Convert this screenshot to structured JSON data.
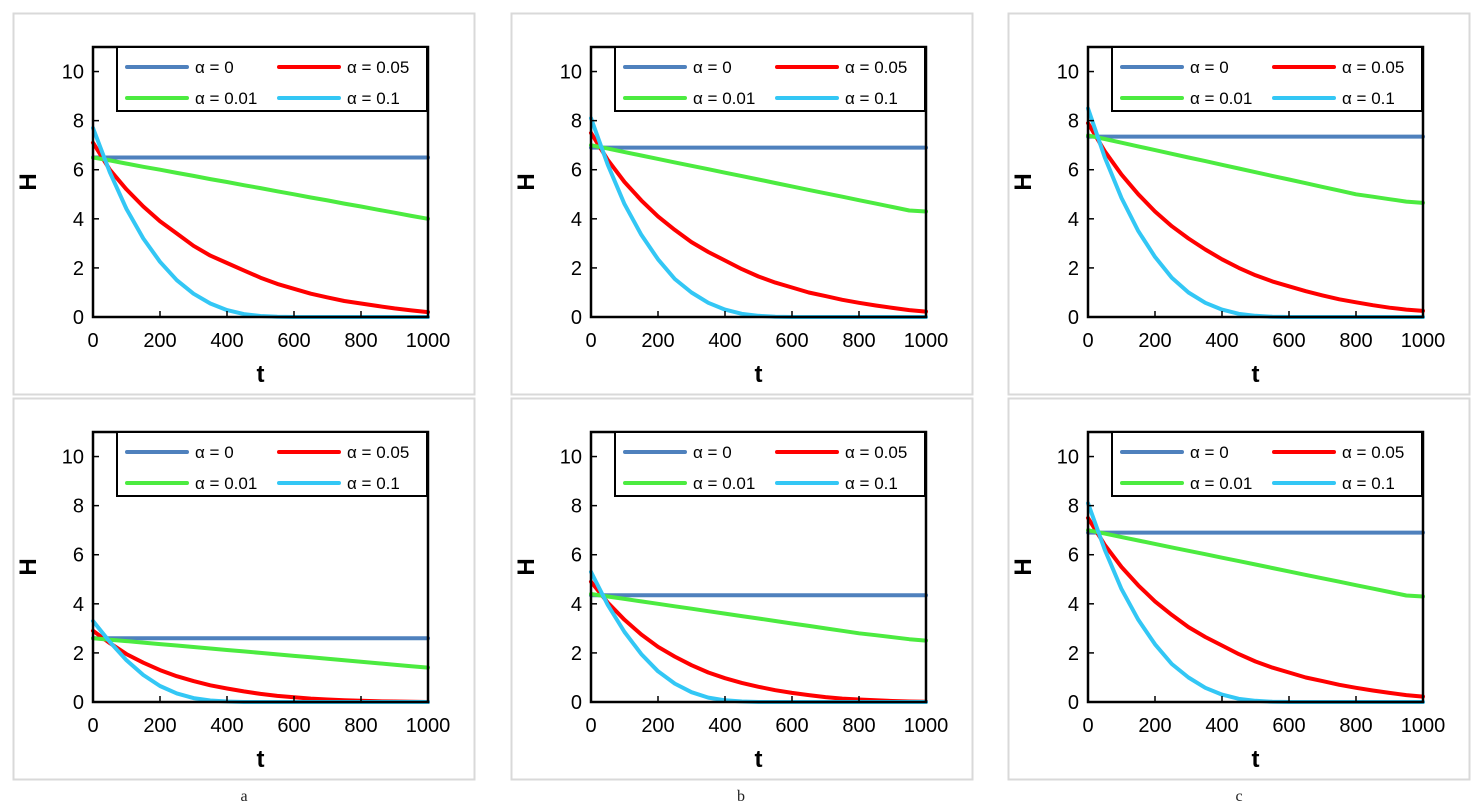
{
  "column_labels": [
    "a",
    "b",
    "c"
  ],
  "legend": {
    "entries": [
      {
        "label": "α = 0",
        "color": "#4F81BD"
      },
      {
        "label": "α = 0.05",
        "color": "#FF0000"
      },
      {
        "label": "α = 0.01",
        "color": "#4CEB40"
      },
      {
        "label": "α = 0.1",
        "color": "#33C7F5"
      }
    ],
    "placement": "top"
  },
  "chart_data": [
    {
      "type": "line",
      "xlabel": "t",
      "ylabel": "H",
      "xlim": [
        0,
        1000
      ],
      "ylim": [
        0,
        11
      ],
      "xticks": [
        0,
        200,
        400,
        600,
        800,
        1000
      ],
      "yticks": [
        0,
        2,
        4,
        6,
        8,
        10
      ],
      "x": [
        0,
        50,
        100,
        150,
        200,
        250,
        300,
        350,
        400,
        450,
        500,
        550,
        600,
        650,
        700,
        750,
        800,
        850,
        900,
        950,
        1000
      ],
      "series": [
        {
          "name": "α = 0",
          "color": "#4F81BD",
          "values": [
            6.5,
            6.5,
            6.5,
            6.5,
            6.5,
            6.5,
            6.5,
            6.5,
            6.5,
            6.5,
            6.5,
            6.5,
            6.5,
            6.5,
            6.5,
            6.5,
            6.5,
            6.5,
            6.5,
            6.5,
            6.5
          ]
        },
        {
          "name": "α = 0.05",
          "color": "#FF0000",
          "values": [
            7.1,
            6.0,
            5.2,
            4.5,
            3.9,
            3.4,
            2.9,
            2.5,
            2.2,
            1.9,
            1.6,
            1.35,
            1.15,
            0.95,
            0.8,
            0.65,
            0.55,
            0.45,
            0.35,
            0.27,
            0.2
          ]
        },
        {
          "name": "α = 0.01",
          "color": "#4CEB40",
          "values": [
            6.5,
            6.38,
            6.25,
            6.12,
            6.0,
            5.87,
            5.75,
            5.62,
            5.5,
            5.37,
            5.25,
            5.12,
            5.0,
            4.87,
            4.75,
            4.62,
            4.5,
            4.37,
            4.25,
            4.12,
            4.0
          ]
        },
        {
          "name": "α = 0.1",
          "color": "#33C7F5",
          "values": [
            7.7,
            5.9,
            4.4,
            3.2,
            2.25,
            1.5,
            0.95,
            0.55,
            0.28,
            0.12,
            0.04,
            0.01,
            0.0,
            0.0,
            0.0,
            0.0,
            0.0,
            0.0,
            0.0,
            0.0,
            0.0
          ]
        }
      ]
    },
    {
      "type": "line",
      "xlabel": "t",
      "ylabel": "H",
      "xlim": [
        0,
        1000
      ],
      "ylim": [
        0,
        11
      ],
      "xticks": [
        0,
        200,
        400,
        600,
        800,
        1000
      ],
      "yticks": [
        0,
        2,
        4,
        6,
        8,
        10
      ],
      "x": [
        0,
        50,
        100,
        150,
        200,
        250,
        300,
        350,
        400,
        450,
        500,
        550,
        600,
        650,
        700,
        750,
        800,
        850,
        900,
        950,
        1000
      ],
      "series": [
        {
          "name": "α = 0",
          "color": "#4F81BD",
          "values": [
            6.9,
            6.9,
            6.9,
            6.9,
            6.9,
            6.9,
            6.9,
            6.9,
            6.9,
            6.9,
            6.9,
            6.9,
            6.9,
            6.9,
            6.9,
            6.9,
            6.9,
            6.9,
            6.9,
            6.9,
            6.9
          ]
        },
        {
          "name": "α = 0.05",
          "color": "#FF0000",
          "values": [
            7.5,
            6.4,
            5.5,
            4.75,
            4.1,
            3.55,
            3.05,
            2.65,
            2.3,
            1.95,
            1.65,
            1.4,
            1.2,
            1.0,
            0.85,
            0.7,
            0.58,
            0.47,
            0.37,
            0.28,
            0.22
          ]
        },
        {
          "name": "α = 0.01",
          "color": "#4CEB40",
          "values": [
            7.0,
            6.86,
            6.72,
            6.58,
            6.44,
            6.3,
            6.16,
            6.02,
            5.88,
            5.74,
            5.6,
            5.46,
            5.32,
            5.18,
            5.04,
            4.9,
            4.76,
            4.62,
            4.48,
            4.34,
            4.3
          ]
        },
        {
          "name": "α = 0.1",
          "color": "#33C7F5",
          "values": [
            8.1,
            6.2,
            4.6,
            3.35,
            2.35,
            1.55,
            1.0,
            0.58,
            0.3,
            0.13,
            0.05,
            0.01,
            0.0,
            0.0,
            0.0,
            0.0,
            0.0,
            0.0,
            0.0,
            0.0,
            0.0
          ]
        }
      ]
    },
    {
      "type": "line",
      "xlabel": "t",
      "ylabel": "H",
      "xlim": [
        0,
        1000
      ],
      "ylim": [
        0,
        11
      ],
      "xticks": [
        0,
        200,
        400,
        600,
        800,
        1000
      ],
      "yticks": [
        0,
        2,
        4,
        6,
        8,
        10
      ],
      "x": [
        0,
        50,
        100,
        150,
        200,
        250,
        300,
        350,
        400,
        450,
        500,
        550,
        600,
        650,
        700,
        750,
        800,
        850,
        900,
        950,
        1000
      ],
      "series": [
        {
          "name": "α = 0",
          "color": "#4F81BD",
          "values": [
            7.35,
            7.35,
            7.35,
            7.35,
            7.35,
            7.35,
            7.35,
            7.35,
            7.35,
            7.35,
            7.35,
            7.35,
            7.35,
            7.35,
            7.35,
            7.35,
            7.35,
            7.35,
            7.35,
            7.35,
            7.35
          ]
        },
        {
          "name": "α = 0.05",
          "color": "#FF0000",
          "values": [
            7.9,
            6.75,
            5.8,
            5.0,
            4.3,
            3.7,
            3.2,
            2.75,
            2.35,
            2.0,
            1.7,
            1.45,
            1.25,
            1.05,
            0.88,
            0.72,
            0.6,
            0.48,
            0.38,
            0.3,
            0.25
          ]
        },
        {
          "name": "α = 0.01",
          "color": "#4CEB40",
          "values": [
            7.4,
            7.25,
            7.1,
            6.95,
            6.8,
            6.65,
            6.5,
            6.35,
            6.2,
            6.05,
            5.9,
            5.75,
            5.6,
            5.45,
            5.3,
            5.15,
            5.0,
            4.9,
            4.8,
            4.7,
            4.65
          ]
        },
        {
          "name": "α = 0.1",
          "color": "#33C7F5",
          "values": [
            8.5,
            6.5,
            4.85,
            3.5,
            2.45,
            1.6,
            1.0,
            0.58,
            0.3,
            0.13,
            0.05,
            0.01,
            0.0,
            0.0,
            0.0,
            0.0,
            0.0,
            0.0,
            0.0,
            0.0,
            0.0
          ]
        }
      ]
    },
    {
      "type": "line",
      "xlabel": "t",
      "ylabel": "H",
      "xlim": [
        0,
        1000
      ],
      "ylim": [
        0,
        11
      ],
      "xticks": [
        0,
        200,
        400,
        600,
        800,
        1000
      ],
      "yticks": [
        0,
        2,
        4,
        6,
        8,
        10
      ],
      "x": [
        0,
        50,
        100,
        150,
        200,
        250,
        300,
        350,
        400,
        450,
        500,
        550,
        600,
        650,
        700,
        750,
        800,
        850,
        900,
        950,
        1000
      ],
      "series": [
        {
          "name": "α = 0",
          "color": "#4F81BD",
          "values": [
            2.6,
            2.6,
            2.6,
            2.6,
            2.6,
            2.6,
            2.6,
            2.6,
            2.6,
            2.6,
            2.6,
            2.6,
            2.6,
            2.6,
            2.6,
            2.6,
            2.6,
            2.6,
            2.6,
            2.6,
            2.6
          ]
        },
        {
          "name": "α = 0.05",
          "color": "#FF0000",
          "values": [
            2.9,
            2.4,
            1.95,
            1.6,
            1.3,
            1.05,
            0.85,
            0.68,
            0.55,
            0.43,
            0.33,
            0.25,
            0.19,
            0.14,
            0.1,
            0.07,
            0.05,
            0.03,
            0.02,
            0.01,
            0.0
          ]
        },
        {
          "name": "α = 0.01",
          "color": "#4CEB40",
          "values": [
            2.6,
            2.54,
            2.48,
            2.42,
            2.36,
            2.3,
            2.24,
            2.18,
            2.12,
            2.06,
            2.0,
            1.94,
            1.88,
            1.82,
            1.76,
            1.7,
            1.64,
            1.58,
            1.52,
            1.46,
            1.4
          ]
        },
        {
          "name": "α = 0.1",
          "color": "#33C7F5",
          "values": [
            3.3,
            2.45,
            1.7,
            1.1,
            0.65,
            0.35,
            0.16,
            0.06,
            0.02,
            0.0,
            0.0,
            0.0,
            0.0,
            0.0,
            0.0,
            0.0,
            0.0,
            0.0,
            0.0,
            0.0,
            0.0
          ]
        }
      ]
    },
    {
      "type": "line",
      "xlabel": "t",
      "ylabel": "H",
      "xlim": [
        0,
        1000
      ],
      "ylim": [
        0,
        11
      ],
      "xticks": [
        0,
        200,
        400,
        600,
        800,
        1000
      ],
      "yticks": [
        0,
        2,
        4,
        6,
        8,
        10
      ],
      "x": [
        0,
        50,
        100,
        150,
        200,
        250,
        300,
        350,
        400,
        450,
        500,
        550,
        600,
        650,
        700,
        750,
        800,
        850,
        900,
        950,
        1000
      ],
      "series": [
        {
          "name": "α = 0",
          "color": "#4F81BD",
          "values": [
            4.35,
            4.35,
            4.35,
            4.35,
            4.35,
            4.35,
            4.35,
            4.35,
            4.35,
            4.35,
            4.35,
            4.35,
            4.35,
            4.35,
            4.35,
            4.35,
            4.35,
            4.35,
            4.35,
            4.35,
            4.35
          ]
        },
        {
          "name": "α = 0.05",
          "color": "#FF0000",
          "values": [
            4.9,
            4.05,
            3.35,
            2.75,
            2.25,
            1.85,
            1.5,
            1.2,
            0.97,
            0.78,
            0.62,
            0.48,
            0.37,
            0.28,
            0.2,
            0.14,
            0.1,
            0.07,
            0.04,
            0.02,
            0.01
          ]
        },
        {
          "name": "α = 0.01",
          "color": "#4CEB40",
          "values": [
            4.4,
            4.3,
            4.2,
            4.1,
            4.0,
            3.9,
            3.8,
            3.7,
            3.6,
            3.5,
            3.4,
            3.3,
            3.2,
            3.1,
            3.0,
            2.9,
            2.8,
            2.72,
            2.64,
            2.56,
            2.5
          ]
        },
        {
          "name": "α = 0.1",
          "color": "#33C7F5",
          "values": [
            5.3,
            3.95,
            2.85,
            1.95,
            1.25,
            0.75,
            0.4,
            0.18,
            0.07,
            0.02,
            0.0,
            0.0,
            0.0,
            0.0,
            0.0,
            0.0,
            0.0,
            0.0,
            0.0,
            0.0,
            0.0
          ]
        }
      ]
    },
    {
      "type": "line",
      "xlabel": "t",
      "ylabel": "H",
      "xlim": [
        0,
        1000
      ],
      "ylim": [
        0,
        11
      ],
      "xticks": [
        0,
        200,
        400,
        600,
        800,
        1000
      ],
      "yticks": [
        0,
        2,
        4,
        6,
        8,
        10
      ],
      "x": [
        0,
        50,
        100,
        150,
        200,
        250,
        300,
        350,
        400,
        450,
        500,
        550,
        600,
        650,
        700,
        750,
        800,
        850,
        900,
        950,
        1000
      ],
      "series": [
        {
          "name": "α = 0",
          "color": "#4F81BD",
          "values": [
            6.9,
            6.9,
            6.9,
            6.9,
            6.9,
            6.9,
            6.9,
            6.9,
            6.9,
            6.9,
            6.9,
            6.9,
            6.9,
            6.9,
            6.9,
            6.9,
            6.9,
            6.9,
            6.9,
            6.9,
            6.9
          ]
        },
        {
          "name": "α = 0.05",
          "color": "#FF0000",
          "values": [
            7.5,
            6.4,
            5.5,
            4.75,
            4.1,
            3.55,
            3.05,
            2.65,
            2.3,
            1.95,
            1.65,
            1.4,
            1.2,
            1.0,
            0.85,
            0.7,
            0.58,
            0.47,
            0.37,
            0.28,
            0.22
          ]
        },
        {
          "name": "α = 0.01",
          "color": "#4CEB40",
          "values": [
            7.0,
            6.86,
            6.72,
            6.58,
            6.44,
            6.3,
            6.16,
            6.02,
            5.88,
            5.74,
            5.6,
            5.46,
            5.32,
            5.18,
            5.04,
            4.9,
            4.76,
            4.62,
            4.48,
            4.34,
            4.3
          ]
        },
        {
          "name": "α = 0.1",
          "color": "#33C7F5",
          "values": [
            8.1,
            6.2,
            4.6,
            3.35,
            2.35,
            1.55,
            1.0,
            0.58,
            0.3,
            0.13,
            0.05,
            0.01,
            0.0,
            0.0,
            0.0,
            0.0,
            0.0,
            0.0,
            0.0,
            0.0,
            0.0
          ]
        }
      ]
    }
  ]
}
